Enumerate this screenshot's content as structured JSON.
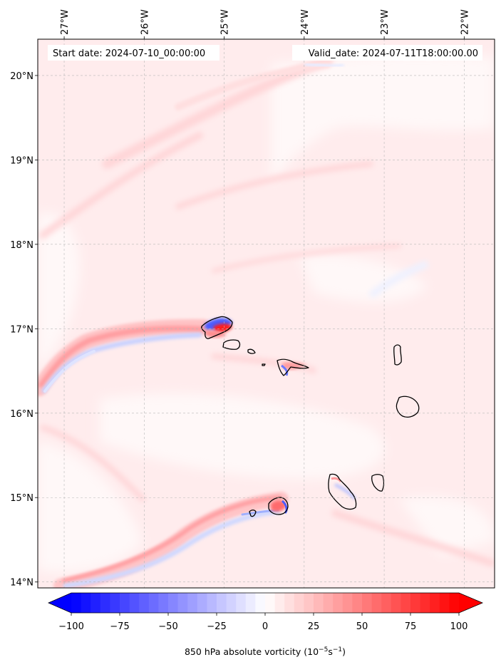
{
  "map": {
    "extent": {
      "lon_min": -27.33,
      "lon_max": -21.62,
      "lat_min": 13.93,
      "lat_max": 20.43
    },
    "lon_ticks": [
      {
        "value": -27,
        "label": "27°W"
      },
      {
        "value": -26,
        "label": "26°W"
      },
      {
        "value": -25,
        "label": "25°W"
      },
      {
        "value": -24,
        "label": "24°W"
      },
      {
        "value": -23,
        "label": "23°W"
      },
      {
        "value": -22,
        "label": "22°W"
      }
    ],
    "lat_ticks": [
      {
        "value": 20,
        "label": "20°N"
      },
      {
        "value": 19,
        "label": "19°N"
      },
      {
        "value": 18,
        "label": "18°N"
      },
      {
        "value": 17,
        "label": "17°N"
      },
      {
        "value": 16,
        "label": "16°N"
      },
      {
        "value": 15,
        "label": "15°N"
      },
      {
        "value": 14,
        "label": "14°N"
      }
    ],
    "gridlines": true,
    "start_label": "Start date: 2024-07-10_00:00:00",
    "valid_label": "Valid_date: 2024-07-11T18:00:00.00"
  },
  "colorbar": {
    "min": -100,
    "max": 100,
    "ticks": [
      -100,
      -75,
      -50,
      -25,
      0,
      25,
      50,
      75,
      100
    ],
    "tick_labels": [
      "−100",
      "−75",
      "−50",
      "−25",
      "0",
      "25",
      "50",
      "75",
      "100"
    ],
    "label_main": "850 hPa absolute vorticity (10",
    "label_exp1": "−5",
    "label_mid": "s",
    "label_exp2": "−1",
    "label_end": ")",
    "extend": "both",
    "colormap": "bwr",
    "color_low": "#0000ff",
    "color_mid": "#ffffff",
    "color_high": "#ff0000"
  }
}
